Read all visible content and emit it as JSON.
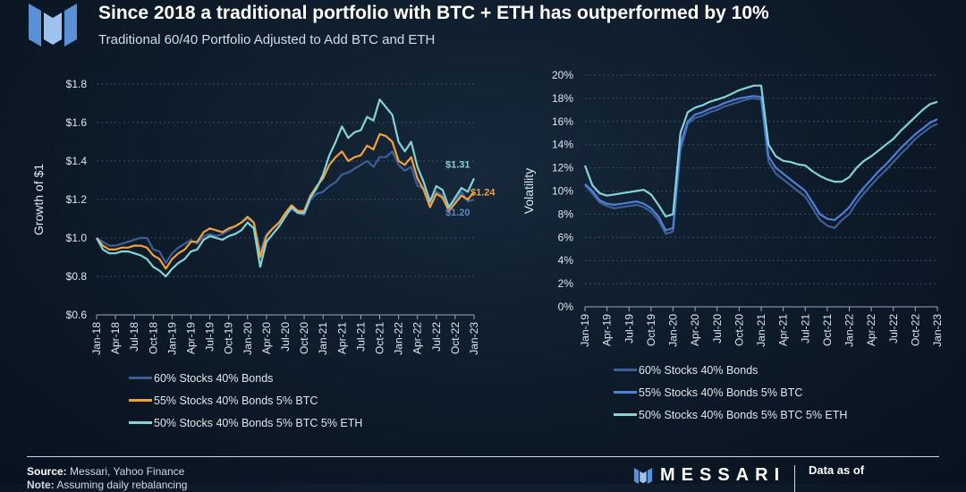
{
  "header": {
    "title": "Since 2018 a traditional portfolio with BTC + ETH has outperformed by 10%",
    "subtitle": "Traditional 60/40 Portfolio Adjusted to Add BTC and ETH"
  },
  "footer": {
    "source_label": "Source:",
    "source_text": " Messari, Yahoo Finance",
    "note_label": "Note:",
    "note_text": " Assuming daily rebalancing",
    "brand": "MESSARI",
    "data_as_of": "Data as of"
  },
  "colors": {
    "s60_40": "#3d5f96",
    "s55_btc": "#f2a13a",
    "s50_btc_eth": "#84d3d6",
    "vol_60_40": "#3d5f96",
    "vol_55_btc": "#4f7fd8",
    "vol_50_btc_eth": "#84d3d6"
  },
  "chart_data": [
    {
      "type": "line",
      "ylabel": "Growth of $1",
      "ylim": [
        0.6,
        1.8
      ],
      "yticks": [
        "$0.6",
        "$0.8",
        "$1.0",
        "$1.2",
        "$1.4",
        "$1.6",
        "$1.8"
      ],
      "xticks": [
        "Jan-18",
        "Apr-18",
        "Jul-18",
        "Oct-18",
        "Jan-19",
        "Apr-19",
        "Jul-19",
        "Oct-19",
        "Jan-20",
        "Apr-20",
        "Jul-20",
        "Oct-20",
        "Jan-21",
        "Apr-21",
        "Jul-21",
        "Oct-21",
        "Jan-22",
        "Apr-22",
        "Jul-22",
        "Oct-22",
        "Jan-23"
      ],
      "x": [
        "Jan-18",
        "Feb-18",
        "Mar-18",
        "Apr-18",
        "May-18",
        "Jun-18",
        "Jul-18",
        "Aug-18",
        "Sep-18",
        "Oct-18",
        "Nov-18",
        "Dec-18",
        "Jan-19",
        "Feb-19",
        "Mar-19",
        "Apr-19",
        "May-19",
        "Jun-19",
        "Jul-19",
        "Aug-19",
        "Sep-19",
        "Oct-19",
        "Nov-19",
        "Dec-19",
        "Jan-20",
        "Feb-20",
        "Mar-20",
        "Apr-20",
        "May-20",
        "Jun-20",
        "Jul-20",
        "Aug-20",
        "Sep-20",
        "Oct-20",
        "Nov-20",
        "Dec-20",
        "Jan-21",
        "Feb-21",
        "Mar-21",
        "Apr-21",
        "May-21",
        "Jun-21",
        "Jul-21",
        "Aug-21",
        "Sep-21",
        "Oct-21",
        "Nov-21",
        "Dec-21",
        "Jan-22",
        "Feb-22",
        "Mar-22",
        "Apr-22",
        "May-22",
        "Jun-22",
        "Jul-22",
        "Aug-22",
        "Sep-22",
        "Oct-22",
        "Nov-22",
        "Dec-22",
        "Jan-23"
      ],
      "series": [
        {
          "name": "60% Stocks 40% Bonds",
          "color_key": "s60_40",
          "values": [
            1.0,
            0.98,
            0.96,
            0.96,
            0.97,
            0.98,
            0.99,
            1.0,
            1.0,
            0.94,
            0.93,
            0.87,
            0.92,
            0.95,
            0.97,
            0.99,
            0.97,
            1.01,
            1.02,
            1.01,
            1.02,
            1.04,
            1.06,
            1.08,
            1.1,
            1.08,
            0.93,
            1.02,
            1.05,
            1.08,
            1.12,
            1.15,
            1.13,
            1.12,
            1.2,
            1.23,
            1.24,
            1.27,
            1.29,
            1.33,
            1.34,
            1.36,
            1.38,
            1.4,
            1.37,
            1.42,
            1.42,
            1.45,
            1.38,
            1.35,
            1.37,
            1.27,
            1.26,
            1.18,
            1.24,
            1.22,
            1.15,
            1.19,
            1.24,
            1.19,
            1.2
          ]
        },
        {
          "name": "55% Stocks 40% Bonds 5% BTC",
          "color_key": "s55_btc",
          "values": [
            1.0,
            0.96,
            0.94,
            0.94,
            0.95,
            0.95,
            0.96,
            0.96,
            0.95,
            0.91,
            0.89,
            0.84,
            0.89,
            0.92,
            0.94,
            0.98,
            0.98,
            1.03,
            1.05,
            1.04,
            1.03,
            1.05,
            1.06,
            1.08,
            1.11,
            1.08,
            0.9,
            1.01,
            1.05,
            1.08,
            1.13,
            1.17,
            1.14,
            1.14,
            1.22,
            1.27,
            1.31,
            1.38,
            1.42,
            1.45,
            1.4,
            1.42,
            1.43,
            1.48,
            1.46,
            1.54,
            1.53,
            1.5,
            1.4,
            1.38,
            1.42,
            1.31,
            1.25,
            1.16,
            1.23,
            1.21,
            1.14,
            1.18,
            1.22,
            1.2,
            1.24
          ]
        },
        {
          "name": "50% Stocks 40% Bonds 5% BTC 5% ETH",
          "color_key": "s50_btc_eth",
          "values": [
            1.0,
            0.94,
            0.92,
            0.92,
            0.93,
            0.93,
            0.92,
            0.91,
            0.89,
            0.85,
            0.83,
            0.8,
            0.84,
            0.87,
            0.89,
            0.93,
            0.94,
            0.99,
            1.01,
            1.0,
            0.99,
            1.01,
            1.02,
            1.04,
            1.08,
            1.05,
            0.85,
            0.98,
            1.02,
            1.06,
            1.11,
            1.16,
            1.13,
            1.13,
            1.21,
            1.26,
            1.33,
            1.43,
            1.5,
            1.58,
            1.52,
            1.55,
            1.56,
            1.63,
            1.61,
            1.72,
            1.68,
            1.64,
            1.5,
            1.45,
            1.5,
            1.37,
            1.29,
            1.19,
            1.27,
            1.25,
            1.16,
            1.21,
            1.26,
            1.24,
            1.31
          ]
        }
      ],
      "annotations": [
        {
          "text": "$1.31",
          "series": 2
        },
        {
          "text": "$1.24",
          "series": 1
        },
        {
          "text": "$1.20",
          "series": 0
        }
      ]
    },
    {
      "type": "line",
      "ylabel": "Volatility",
      "ylim": [
        0,
        20
      ],
      "yticks": [
        "0%",
        "2%",
        "4%",
        "6%",
        "8%",
        "10%",
        "12%",
        "14%",
        "16%",
        "18%",
        "20%"
      ],
      "xticks": [
        "Jan-19",
        "Apr-19",
        "Jul-19",
        "Oct-19",
        "Jan-20",
        "Apr-20",
        "Jul-20",
        "Oct-20",
        "Jan-21",
        "Apr-21",
        "Jul-21",
        "Oct-21",
        "Jan-22",
        "Apr-22",
        "Jul-22",
        "Oct-22",
        "Jan-23"
      ],
      "x": [
        "Jan-19",
        "Feb-19",
        "Mar-19",
        "Apr-19",
        "May-19",
        "Jun-19",
        "Jul-19",
        "Aug-19",
        "Sep-19",
        "Oct-19",
        "Nov-19",
        "Dec-19",
        "Jan-20",
        "Feb-20",
        "Mar-20",
        "Apr-20",
        "May-20",
        "Jun-20",
        "Jul-20",
        "Aug-20",
        "Sep-20",
        "Oct-20",
        "Nov-20",
        "Dec-20",
        "Jan-21",
        "Feb-21",
        "Mar-21",
        "Apr-21",
        "May-21",
        "Jun-21",
        "Jul-21",
        "Aug-21",
        "Sep-21",
        "Oct-21",
        "Nov-21",
        "Dec-21",
        "Jan-22",
        "Feb-22",
        "Mar-22",
        "Apr-22",
        "May-22",
        "Jun-22",
        "Jul-22",
        "Aug-22",
        "Sep-22",
        "Oct-22",
        "Nov-22",
        "Dec-22",
        "Jan-23"
      ],
      "series": [
        {
          "name": "60% Stocks 40% Bonds",
          "color_key": "vol_60_40",
          "values": [
            10.5,
            9.8,
            9.0,
            8.7,
            8.5,
            8.6,
            8.7,
            8.8,
            8.6,
            8.2,
            7.5,
            6.3,
            6.5,
            13.5,
            15.8,
            16.3,
            16.5,
            16.8,
            17.0,
            17.3,
            17.5,
            17.7,
            17.9,
            18.0,
            17.9,
            12.5,
            11.5,
            11.0,
            10.5,
            10.0,
            9.5,
            8.5,
            7.5,
            7.0,
            6.8,
            7.5,
            8.0,
            9.0,
            9.8,
            10.5,
            11.2,
            11.8,
            12.5,
            13.2,
            13.8,
            14.5,
            15.0,
            15.5,
            15.8
          ]
        },
        {
          "name": "55% Stocks 40% Bonds 5% BTC",
          "color_key": "vol_55_btc",
          "values": [
            10.6,
            10.0,
            9.2,
            8.9,
            8.8,
            8.9,
            9.0,
            9.1,
            8.9,
            8.5,
            7.8,
            6.6,
            6.8,
            14.0,
            16.0,
            16.6,
            16.8,
            17.1,
            17.3,
            17.6,
            17.8,
            18.0,
            18.1,
            18.2,
            18.1,
            13.0,
            12.0,
            11.5,
            11.0,
            10.5,
            10.0,
            9.0,
            8.0,
            7.6,
            7.5,
            8.0,
            8.6,
            9.5,
            10.3,
            11.0,
            11.7,
            12.3,
            13.0,
            13.7,
            14.3,
            14.9,
            15.4,
            15.9,
            16.2
          ]
        },
        {
          "name": "50% Stocks 40% Bonds 5% BTC 5% ETH",
          "color_key": "vol_50_btc_eth",
          "values": [
            12.2,
            10.5,
            9.8,
            9.6,
            9.7,
            9.8,
            9.9,
            10.0,
            10.1,
            9.7,
            8.8,
            7.8,
            8.0,
            15.0,
            16.8,
            17.2,
            17.4,
            17.7,
            17.9,
            18.1,
            18.4,
            18.7,
            18.9,
            19.1,
            19.1,
            14.0,
            13.0,
            12.6,
            12.5,
            12.3,
            12.2,
            11.7,
            11.3,
            11.0,
            10.8,
            10.8,
            11.2,
            12.0,
            12.6,
            13.0,
            13.5,
            14.0,
            14.5,
            15.2,
            15.8,
            16.4,
            17.0,
            17.5,
            17.7
          ]
        }
      ]
    }
  ]
}
